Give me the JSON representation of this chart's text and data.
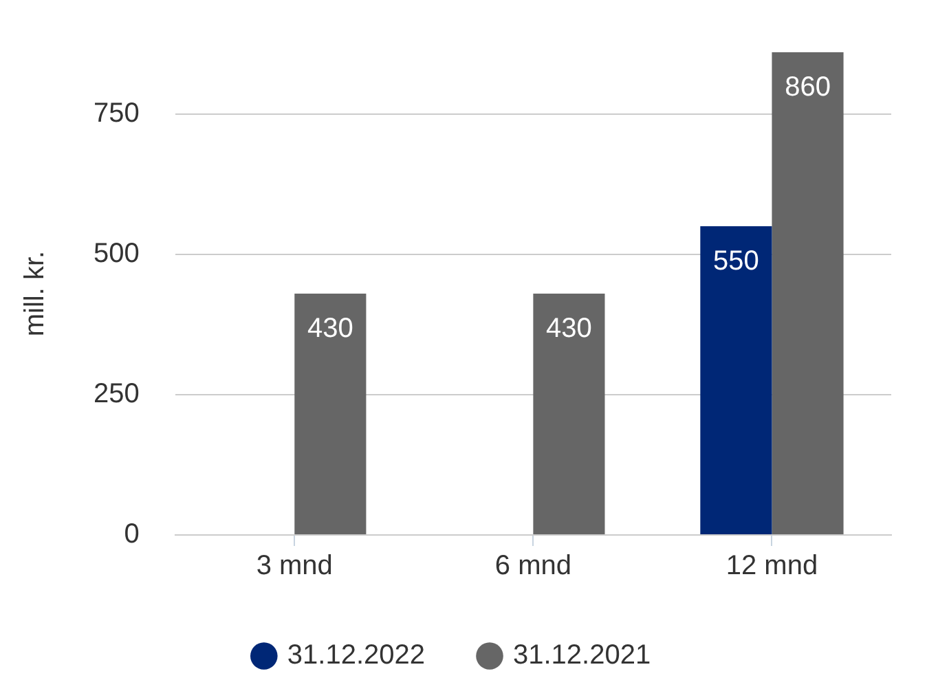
{
  "chart_data": {
    "type": "bar",
    "ylabel": "mill. kr.",
    "categories": [
      "3 mnd",
      "6 mnd",
      "12 mnd"
    ],
    "series": [
      {
        "name": "31.12.2022",
        "color": "#002776",
        "values": [
          null,
          null,
          550
        ]
      },
      {
        "name": "31.12.2021",
        "color": "#666666",
        "values": [
          430,
          430,
          860
        ]
      }
    ],
    "ylim": [
      0,
      860
    ],
    "yticks": [
      0,
      250,
      500,
      750
    ],
    "grid": "y",
    "legend": "bottom",
    "data_labels": true
  }
}
